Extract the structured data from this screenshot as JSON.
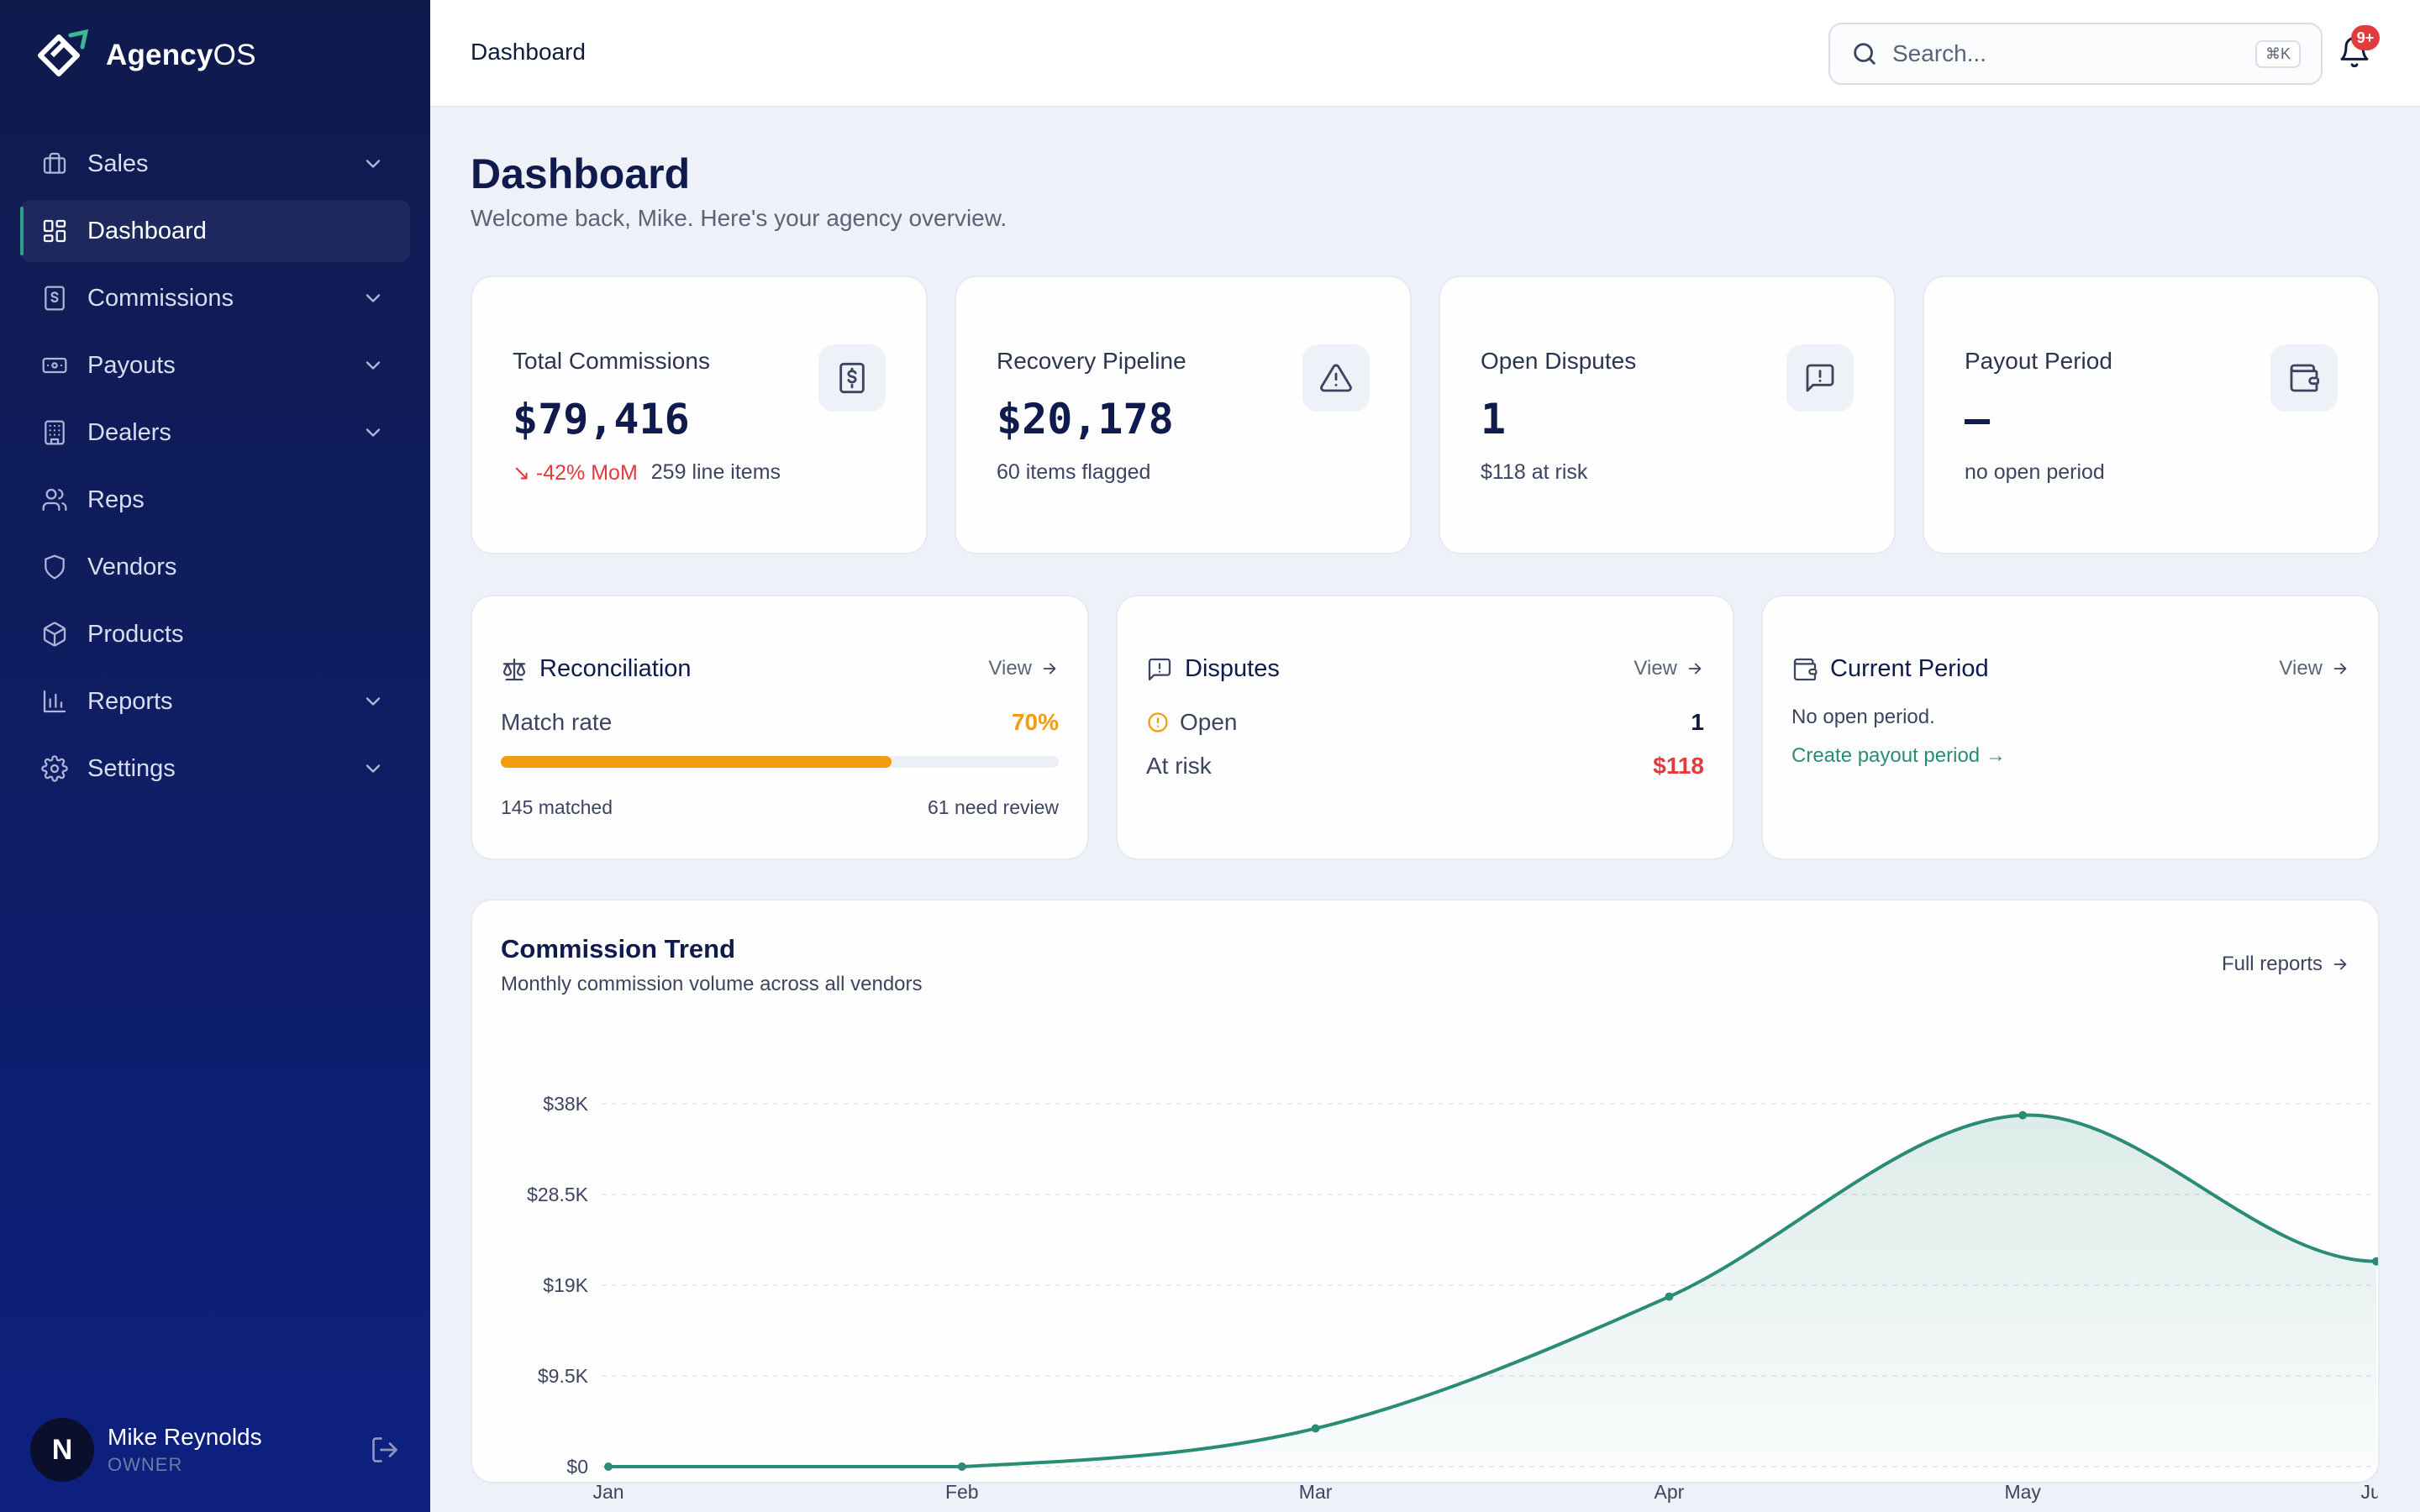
{
  "app": {
    "name_bold": "Agency",
    "name_light": "OS"
  },
  "sidebar": {
    "items": [
      {
        "label": "Sales",
        "icon": "briefcase-icon",
        "expandable": true
      },
      {
        "label": "Dashboard",
        "icon": "grid-icon",
        "expandable": false,
        "active": true
      },
      {
        "label": "Commissions",
        "icon": "receipt-icon",
        "expandable": true
      },
      {
        "label": "Payouts",
        "icon": "banknote-icon",
        "expandable": true
      },
      {
        "label": "Dealers",
        "icon": "building-icon",
        "expandable": true
      },
      {
        "label": "Reps",
        "icon": "users-icon",
        "expandable": false
      },
      {
        "label": "Vendors",
        "icon": "shield-icon",
        "expandable": false
      },
      {
        "label": "Products",
        "icon": "box-icon",
        "expandable": false
      },
      {
        "label": "Reports",
        "icon": "bar-chart-icon",
        "expandable": true
      },
      {
        "label": "Settings",
        "icon": "gear-icon",
        "expandable": true
      }
    ],
    "user": {
      "initial": "N",
      "name": "Mike Reynolds",
      "role": "OWNER"
    }
  },
  "topbar": {
    "breadcrumb": "Dashboard",
    "search_placeholder": "Search...",
    "search_shortcut": "⌘K",
    "notifications_badge": "9+"
  },
  "page": {
    "title": "Dashboard",
    "subtitle": "Welcome back, Mike. Here's your agency overview."
  },
  "stats": [
    {
      "label": "Total Commissions",
      "value": "$79,416",
      "change": "-42% MoM",
      "note": "259 line items",
      "icon": "receipt-icon"
    },
    {
      "label": "Recovery Pipeline",
      "value": "$20,178",
      "note": "60 items flagged",
      "icon": "warning-icon"
    },
    {
      "label": "Open Disputes",
      "value": "1",
      "note": "$118 at risk",
      "icon": "message-alert-icon"
    },
    {
      "label": "Payout Period",
      "value": "–",
      "note": "no open period",
      "icon": "wallet-icon"
    }
  ],
  "reconciliation": {
    "title": "Reconciliation",
    "view": "View",
    "match_label": "Match rate",
    "match_value": "70%",
    "match_fraction": 0.7,
    "matched": "145 matched",
    "review": "61 need review"
  },
  "disputes": {
    "title": "Disputes",
    "view": "View",
    "open_label": "Open",
    "open_value": "1",
    "risk_label": "At risk",
    "risk_value": "$118"
  },
  "period": {
    "title": "Current Period",
    "view": "View",
    "empty": "No open period.",
    "create_link": "Create payout period →"
  },
  "trend": {
    "title": "Commission Trend",
    "subtitle": "Monthly commission volume across all vendors",
    "link": "Full reports"
  },
  "chart_data": {
    "type": "area",
    "title": "Commission Trend",
    "x": [
      "Jan",
      "Feb",
      "Mar",
      "Apr",
      "May",
      "Jun"
    ],
    "values": [
      0,
      0,
      4000,
      17800,
      36800,
      21500
    ],
    "yticks": [
      "$0",
      "$9.5K",
      "$19K",
      "$28.5K",
      "$38K"
    ],
    "ylim": [
      0,
      38000
    ],
    "color": "#2a8c74",
    "grid": true
  },
  "colors": {
    "accent": "#2a8c74",
    "warning": "#f39c12",
    "danger": "#e23b3b",
    "sidebar": "#0f1a4d"
  }
}
